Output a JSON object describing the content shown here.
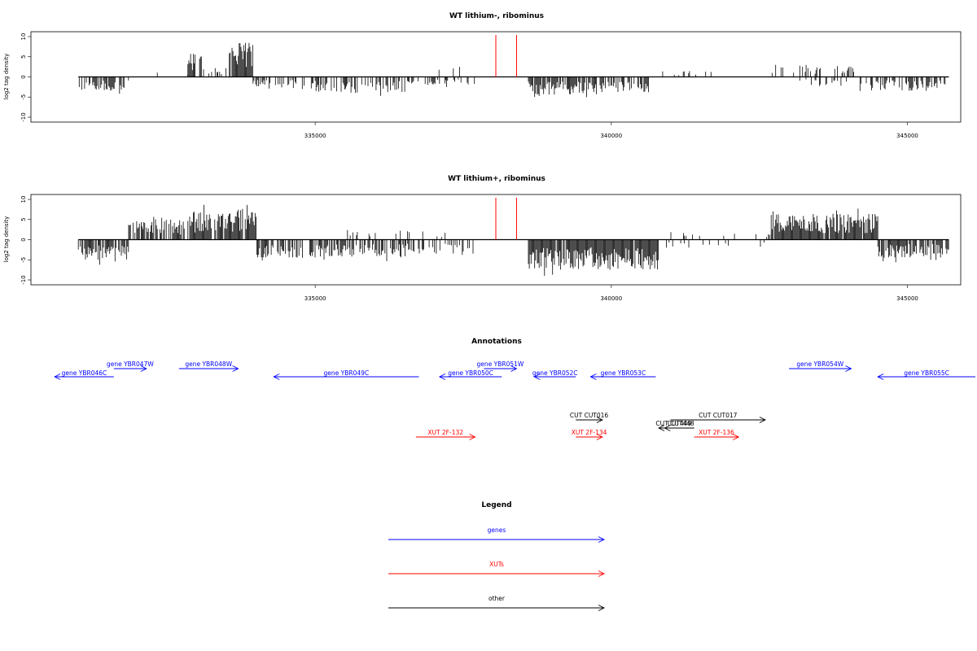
{
  "chart_data": [
    {
      "type": "bar",
      "title": "WT lithium-, ribominus",
      "ylabel": "log2 tag density",
      "ylim": [
        -10,
        10
      ],
      "xlim": [
        330200,
        345900
      ],
      "yticks": [
        "-10",
        "-5",
        "0",
        "5",
        "10"
      ],
      "xticks": [
        {
          "value": 335000,
          "label": "335000"
        },
        {
          "value": 340000,
          "label": "340000"
        },
        {
          "value": 345000,
          "label": "345000"
        }
      ],
      "marker_lines": [
        {
          "x": 338050,
          "color": "#ff0000"
        },
        {
          "x": 338400,
          "color": "#ff0000"
        }
      ],
      "segments": [
        {
          "x0": 331000,
          "x1": 331850,
          "sign": -1,
          "amp": 3.5,
          "density": 0.55
        },
        {
          "x0": 331850,
          "x1": 332850,
          "sign": 1,
          "amp": 1.5,
          "density": 0.05
        },
        {
          "x0": 332850,
          "x1": 333100,
          "sign": 1,
          "amp": 6.0,
          "density": 0.7
        },
        {
          "x0": 333100,
          "x1": 333550,
          "sign": 1,
          "amp": 2.5,
          "density": 0.3
        },
        {
          "x0": 333550,
          "x1": 333950,
          "sign": 1,
          "amp": 8.5,
          "density": 0.9
        },
        {
          "x0": 333950,
          "x1": 335000,
          "sign": -1,
          "amp": 3.0,
          "density": 0.45
        },
        {
          "x0": 335000,
          "x1": 336600,
          "sign": -1,
          "amp": 4.0,
          "density": 0.6
        },
        {
          "x0": 336600,
          "x1": 337700,
          "sign": -1,
          "amp": 2.5,
          "density": 0.25
        },
        {
          "x0": 337000,
          "x1": 337500,
          "sign": 1,
          "amp": 3.0,
          "density": 0.08
        },
        {
          "x0": 338600,
          "x1": 339900,
          "sign": -1,
          "amp": 4.5,
          "density": 0.8
        },
        {
          "x0": 339900,
          "x1": 340700,
          "sign": -1,
          "amp": 4.0,
          "density": 0.6
        },
        {
          "x0": 340700,
          "x1": 342600,
          "sign": 1,
          "amp": 1.5,
          "density": 0.05
        },
        {
          "x0": 342700,
          "x1": 344100,
          "sign": 1,
          "amp": 3.0,
          "density": 0.35
        },
        {
          "x0": 343000,
          "x1": 344000,
          "sign": -1,
          "amp": 2.5,
          "density": 0.2
        },
        {
          "x0": 344200,
          "x1": 345700,
          "sign": -1,
          "amp": 3.5,
          "density": 0.55
        }
      ]
    },
    {
      "type": "bar",
      "title": "WT lithium+, ribominus",
      "ylabel": "log2 tag density",
      "ylim": [
        -10,
        10
      ],
      "xlim": [
        330200,
        345900
      ],
      "yticks": [
        "-10",
        "-5",
        "0",
        "5",
        "10"
      ],
      "xticks": [
        {
          "value": 335000,
          "label": "335000"
        },
        {
          "value": 340000,
          "label": "340000"
        },
        {
          "value": 345000,
          "label": "345000"
        }
      ],
      "marker_lines": [
        {
          "x": 338050,
          "color": "#ff0000"
        },
        {
          "x": 338400,
          "color": "#ff0000"
        }
      ],
      "segments": [
        {
          "x0": 331000,
          "x1": 331850,
          "sign": -1,
          "amp": 5.5,
          "density": 0.85
        },
        {
          "x0": 331850,
          "x1": 332800,
          "sign": 1,
          "amp": 5.0,
          "density": 0.7
        },
        {
          "x0": 332850,
          "x1": 334000,
          "sign": 1,
          "amp": 7.0,
          "density": 0.9
        },
        {
          "x0": 334000,
          "x1": 336500,
          "sign": -1,
          "amp": 4.5,
          "density": 0.65
        },
        {
          "x0": 335500,
          "x1": 337200,
          "sign": 1,
          "amp": 2.5,
          "density": 0.15
        },
        {
          "x0": 336500,
          "x1": 337700,
          "sign": -1,
          "amp": 3.5,
          "density": 0.45
        },
        {
          "x0": 338600,
          "x1": 340800,
          "sign": -1,
          "amp": 7.5,
          "density": 0.95
        },
        {
          "x0": 340900,
          "x1": 342700,
          "sign": -1,
          "amp": 2.0,
          "density": 0.1
        },
        {
          "x0": 340900,
          "x1": 342700,
          "sign": 1,
          "amp": 2.0,
          "density": 0.1
        },
        {
          "x0": 342700,
          "x1": 344500,
          "sign": 1,
          "amp": 6.5,
          "density": 0.95
        },
        {
          "x0": 344500,
          "x1": 345700,
          "sign": -1,
          "amp": 4.5,
          "density": 0.75
        }
      ]
    }
  ],
  "annotations": {
    "title": "Annotations",
    "genes": [
      {
        "label": "gene YBR046C",
        "x0": 330600,
        "x1": 331600,
        "dir": "left",
        "row": 2
      },
      {
        "label": "gene YBR047W",
        "x0": 331600,
        "x1": 332150,
        "dir": "right",
        "row": 1
      },
      {
        "label": "gene YBR048W",
        "x0": 332700,
        "x1": 333700,
        "dir": "right",
        "row": 1
      },
      {
        "label": "gene YBR049C",
        "x0": 334300,
        "x1": 336750,
        "dir": "left",
        "row": 2
      },
      {
        "label": "gene YBR050C",
        "x0": 337100,
        "x1": 338150,
        "dir": "left",
        "row": 2
      },
      {
        "label": "gene YBR051W",
        "x0": 337850,
        "x1": 338400,
        "dir": "right",
        "row": 1
      },
      {
        "label": "gene YBR052C",
        "x0": 338700,
        "x1": 339400,
        "dir": "left",
        "row": 2
      },
      {
        "label": "gene YBR053C",
        "x0": 339650,
        "x1": 340750,
        "dir": "left",
        "row": 2
      },
      {
        "label": "gene YBR054W",
        "x0": 343000,
        "x1": 344050,
        "dir": "right",
        "row": 1
      },
      {
        "label": "gene YBR055C",
        "x0": 344500,
        "x1": 346300,
        "dir": "left",
        "row": 2
      }
    ],
    "xuts": [
      {
        "label": "XUT 2F-132",
        "x0": 336700,
        "x1": 337700,
        "dir": "right",
        "row": 2
      },
      {
        "label": "XUT 2F-134",
        "x0": 339400,
        "x1": 339850,
        "dir": "right",
        "row": 2
      },
      {
        "label": "XUT 2F-136",
        "x0": 341400,
        "x1": 342150,
        "dir": "right",
        "row": 2
      }
    ],
    "other": [
      {
        "label": "CUT CUT016",
        "x0": 339400,
        "x1": 339850,
        "dir": "right",
        "row": 0
      },
      {
        "label": "CUT CUT017",
        "x0": 341000,
        "x1": 342600,
        "dir": "right",
        "row": 0
      },
      {
        "label": "CUT CUT448",
        "x0": 340800,
        "x1": 341350,
        "dir": "left",
        "row": 1
      },
      {
        "label": "CUT449",
        "x0": 340900,
        "x1": 341400,
        "dir": "left",
        "row": 1
      }
    ]
  },
  "legend": {
    "title": "Legend",
    "items": [
      {
        "label": "genes",
        "color": "#0000ff"
      },
      {
        "label": "XUTs",
        "color": "#ff0000"
      },
      {
        "label": "other",
        "color": "#000000"
      }
    ]
  },
  "colors": {
    "gene": "#0000ff",
    "xut": "#ff0000",
    "other": "#000000",
    "track": "#000000"
  }
}
